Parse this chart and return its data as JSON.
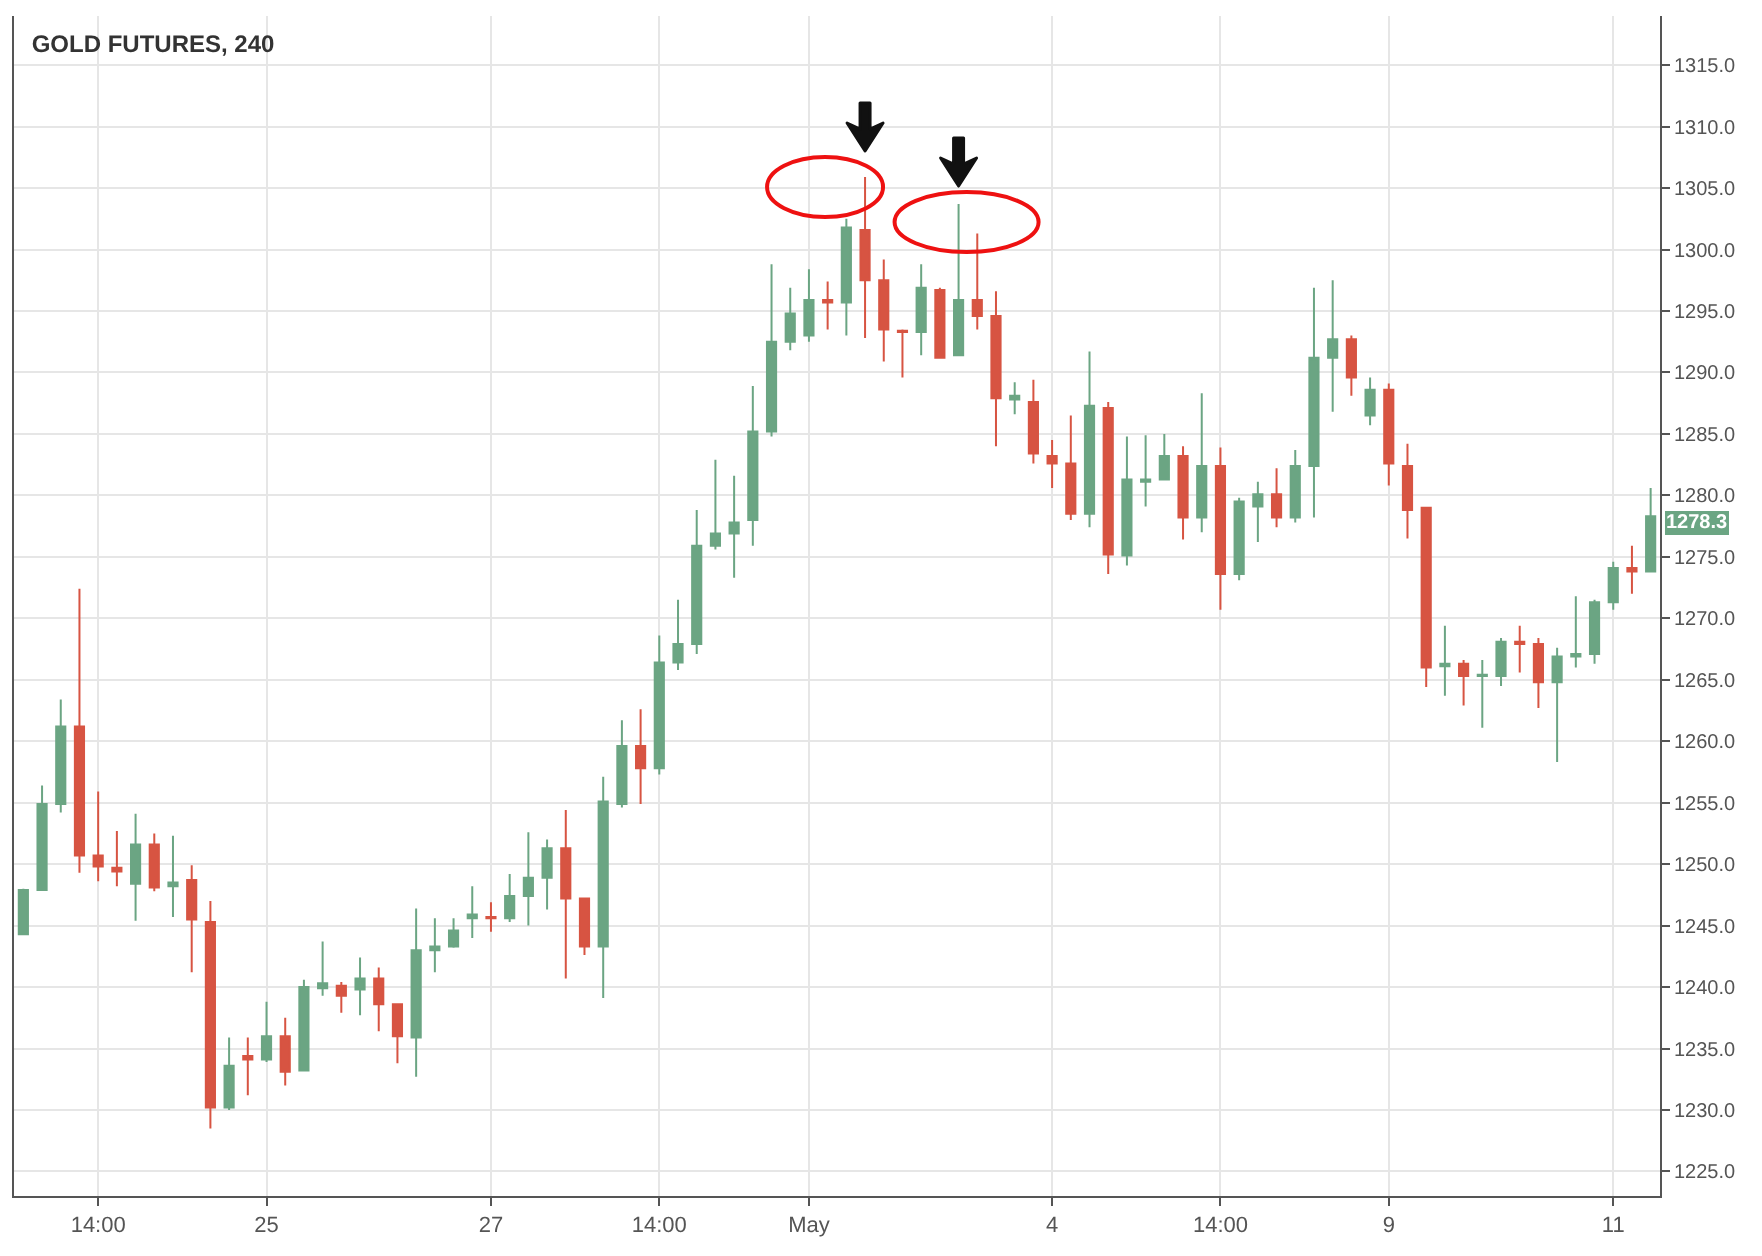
{
  "chart_data": {
    "type": "candlestick",
    "title": "GOLD FUTURES, 240",
    "categories": [
      null,
      null,
      null,
      null,
      "14:00",
      null,
      null,
      null,
      null,
      null,
      null,
      null,
      null,
      "25",
      null,
      null,
      null,
      null,
      null,
      null,
      null,
      null,
      null,
      null,
      null,
      "27",
      null,
      null,
      null,
      null,
      null,
      null,
      null,
      null,
      "14:00",
      null,
      null,
      null,
      null,
      null,
      null,
      null,
      "May",
      null,
      null,
      null,
      null,
      null,
      null,
      null,
      null,
      null,
      null,
      null,
      null,
      "4",
      null,
      null,
      null,
      null,
      null,
      null,
      null,
      null,
      "14:00",
      null,
      null,
      null,
      null,
      null,
      null,
      null,
      null,
      "9",
      null,
      null,
      null,
      null,
      null,
      null,
      null,
      null,
      null,
      null,
      null,
      "11",
      null,
      null
    ],
    "ohlc": [
      [
        1244.3,
        1248.0,
        1244.3,
        1247.9
      ],
      [
        1247.9,
        1256.4,
        1247.9,
        1254.9
      ],
      [
        1254.9,
        1263.4,
        1254.2,
        1261.2
      ],
      [
        1261.2,
        1272.4,
        1249.3,
        1250.7
      ],
      [
        1250.7,
        1255.9,
        1248.6,
        1249.8
      ],
      [
        1249.7,
        1252.7,
        1248.2,
        1249.4
      ],
      [
        1248.4,
        1254.1,
        1245.4,
        1251.6
      ],
      [
        1251.6,
        1252.5,
        1247.8,
        1248.1
      ],
      [
        1248.2,
        1252.3,
        1245.7,
        1248.5
      ],
      [
        1248.7,
        1249.9,
        1241.2,
        1245.5
      ],
      [
        1245.3,
        1247.0,
        1228.5,
        1230.2
      ],
      [
        1230.2,
        1235.9,
        1230.0,
        1233.6
      ],
      [
        1234.4,
        1235.9,
        1231.2,
        1234.1
      ],
      [
        1234.1,
        1238.8,
        1233.9,
        1236.0
      ],
      [
        1236.0,
        1237.5,
        1232.0,
        1233.1
      ],
      [
        1233.2,
        1240.6,
        1233.2,
        1240.0
      ],
      [
        1239.9,
        1243.7,
        1239.3,
        1240.3
      ],
      [
        1240.1,
        1240.4,
        1237.9,
        1239.3
      ],
      [
        1239.8,
        1242.4,
        1237.7,
        1240.7
      ],
      [
        1240.7,
        1241.6,
        1236.4,
        1238.6
      ],
      [
        1238.6,
        1238.6,
        1233.8,
        1236.0
      ],
      [
        1235.9,
        1246.4,
        1232.7,
        1243.0
      ],
      [
        1243.0,
        1245.6,
        1241.2,
        1243.3
      ],
      [
        1243.3,
        1245.6,
        1243.2,
        1244.6
      ],
      [
        1245.6,
        1248.2,
        1244.0,
        1245.9
      ],
      [
        1245.7,
        1246.9,
        1244.5,
        1245.6
      ],
      [
        1245.6,
        1249.2,
        1245.3,
        1247.4
      ],
      [
        1247.4,
        1252.6,
        1245.0,
        1248.9
      ],
      [
        1248.9,
        1252.0,
        1246.3,
        1251.3
      ],
      [
        1251.3,
        1254.4,
        1240.7,
        1247.2
      ],
      [
        1247.2,
        1247.2,
        1242.6,
        1243.3
      ],
      [
        1243.3,
        1257.1,
        1239.1,
        1255.1
      ],
      [
        1254.9,
        1261.7,
        1254.6,
        1259.6
      ],
      [
        1259.6,
        1262.6,
        1254.9,
        1257.8
      ],
      [
        1257.8,
        1268.6,
        1257.3,
        1266.4
      ],
      [
        1266.4,
        1271.5,
        1265.8,
        1267.9
      ],
      [
        1267.9,
        1278.8,
        1267.1,
        1275.9
      ],
      [
        1275.9,
        1282.9,
        1275.6,
        1276.9
      ],
      [
        1276.9,
        1281.6,
        1273.3,
        1277.8
      ],
      [
        1278.0,
        1288.9,
        1275.9,
        1285.2
      ],
      [
        1285.2,
        1298.8,
        1284.8,
        1292.5
      ],
      [
        1292.5,
        1296.9,
        1291.8,
        1294.8
      ],
      [
        1293.0,
        1298.4,
        1292.5,
        1295.9
      ],
      [
        1295.9,
        1297.4,
        1293.5,
        1295.7
      ],
      [
        1295.7,
        1302.5,
        1293.0,
        1301.8
      ],
      [
        1301.6,
        1305.9,
        1292.8,
        1297.5
      ],
      [
        1297.5,
        1299.2,
        1290.9,
        1293.5
      ],
      [
        1293.4,
        1293.5,
        1289.6,
        1293.3
      ],
      [
        1293.3,
        1298.8,
        1291.4,
        1296.9
      ],
      [
        1296.7,
        1296.9,
        1291.2,
        1291.2
      ],
      [
        1291.4,
        1303.7,
        1291.4,
        1295.9
      ],
      [
        1295.9,
        1301.3,
        1293.5,
        1294.6
      ],
      [
        1294.6,
        1296.6,
        1284.0,
        1287.9
      ],
      [
        1287.8,
        1289.2,
        1286.6,
        1288.1
      ],
      [
        1287.6,
        1289.4,
        1282.6,
        1283.4
      ],
      [
        1283.2,
        1284.5,
        1280.6,
        1282.6
      ],
      [
        1282.6,
        1286.5,
        1278.0,
        1278.5
      ],
      [
        1278.5,
        1291.7,
        1277.4,
        1287.3
      ],
      [
        1287.1,
        1287.6,
        1273.6,
        1275.2
      ],
      [
        1275.1,
        1284.8,
        1274.3,
        1281.3
      ],
      [
        1281.1,
        1284.9,
        1279.1,
        1281.3
      ],
      [
        1281.3,
        1285.0,
        1281.2,
        1283.2
      ],
      [
        1283.2,
        1284.0,
        1276.4,
        1278.2
      ],
      [
        1278.2,
        1288.3,
        1277.0,
        1282.4
      ],
      [
        1282.4,
        1283.9,
        1270.7,
        1273.6
      ],
      [
        1273.6,
        1279.8,
        1273.1,
        1279.5
      ],
      [
        1279.1,
        1281.1,
        1276.2,
        1280.1
      ],
      [
        1280.1,
        1282.2,
        1277.4,
        1278.2
      ],
      [
        1278.2,
        1283.7,
        1277.8,
        1282.4
      ],
      [
        1282.4,
        1296.9,
        1278.2,
        1291.2
      ],
      [
        1291.2,
        1297.5,
        1286.8,
        1292.7
      ],
      [
        1292.7,
        1293.0,
        1288.1,
        1289.6
      ],
      [
        1286.5,
        1289.6,
        1285.7,
        1288.6
      ],
      [
        1288.6,
        1289.1,
        1280.8,
        1282.6
      ],
      [
        1282.4,
        1284.2,
        1276.5,
        1278.8
      ],
      [
        1279.0,
        1279.0,
        1264.4,
        1266.0
      ],
      [
        1266.1,
        1269.4,
        1263.7,
        1266.3
      ],
      [
        1266.3,
        1266.6,
        1262.9,
        1265.3
      ],
      [
        1265.3,
        1266.6,
        1261.1,
        1265.4
      ],
      [
        1265.3,
        1268.4,
        1264.5,
        1268.1
      ],
      [
        1268.1,
        1269.4,
        1265.6,
        1267.9
      ],
      [
        1267.9,
        1268.4,
        1262.7,
        1264.8
      ],
      [
        1264.8,
        1267.6,
        1258.3,
        1266.9
      ],
      [
        1266.9,
        1271.8,
        1266.0,
        1267.1
      ],
      [
        1267.1,
        1271.5,
        1266.3,
        1271.3
      ],
      [
        1271.3,
        1274.6,
        1270.7,
        1274.1
      ],
      [
        1274.1,
        1275.9,
        1272.0,
        1273.8
      ],
      [
        1273.8,
        1280.6,
        1273.8,
        1278.3
      ]
    ],
    "colors": [
      "#6ba583",
      "#6ba583",
      "#6ba583",
      "#d75442",
      "#d75442",
      "#d75442",
      "#6ba583",
      "#d75442",
      "#6ba583",
      "#d75442",
      "#d75442",
      "#6ba583",
      "#d75442",
      "#6ba583",
      "#d75442",
      "#6ba583",
      "#6ba583",
      "#d75442",
      "#6ba583",
      "#d75442",
      "#d75442",
      "#6ba583",
      "#6ba583",
      "#6ba583",
      "#6ba583",
      "#d75442",
      "#6ba583",
      "#6ba583",
      "#6ba583",
      "#d75442",
      "#d75442",
      "#6ba583",
      "#6ba583",
      "#d75442",
      "#6ba583",
      "#6ba583",
      "#6ba583",
      "#6ba583",
      "#6ba583",
      "#6ba583",
      "#6ba583",
      "#6ba583",
      "#6ba583",
      "#d75442",
      "#6ba583",
      "#d75442",
      "#d75442",
      "#d75442",
      "#6ba583",
      "#d75442",
      "#6ba583",
      "#d75442",
      "#d75442",
      "#6ba583",
      "#d75442",
      "#d75442",
      "#d75442",
      "#6ba583",
      "#d75442",
      "#6ba583",
      "#6ba583",
      "#6ba583",
      "#d75442",
      "#6ba583",
      "#d75442",
      "#6ba583",
      "#6ba583",
      "#d75442",
      "#6ba583",
      "#6ba583",
      "#6ba583",
      "#d75442",
      "#6ba583",
      "#d75442",
      "#d75442",
      "#d75442",
      "#6ba583",
      "#d75442",
      "#6ba583",
      "#6ba583",
      "#d75442",
      "#d75442",
      "#6ba583",
      "#6ba583",
      "#6ba583",
      "#6ba583",
      "#d75442",
      "#6ba583"
    ],
    "ylim": [
      1223,
      1319
    ],
    "yticks": [
      {
        "value": 1225,
        "label": "1225.0"
      },
      {
        "value": 1230,
        "label": "1230.0"
      },
      {
        "value": 1235,
        "label": "1235.0"
      },
      {
        "value": 1240,
        "label": "1240.0"
      },
      {
        "value": 1245,
        "label": "1245.0"
      },
      {
        "value": 1250,
        "label": "1250.0"
      },
      {
        "value": 1255,
        "label": "1255.0"
      },
      {
        "value": 1260,
        "label": "1260.0"
      },
      {
        "value": 1265,
        "label": "1265.0"
      },
      {
        "value": 1270,
        "label": "1270.0"
      },
      {
        "value": 1275,
        "label": "1275.0"
      },
      {
        "value": 1280,
        "label": "1280.0"
      },
      {
        "value": 1285,
        "label": "1285.0"
      },
      {
        "value": 1290,
        "label": "1290.0"
      },
      {
        "value": 1295,
        "label": "1295.0"
      },
      {
        "value": 1300,
        "label": "1300.0"
      },
      {
        "value": 1305,
        "label": "1305.0"
      },
      {
        "value": 1310,
        "label": "1310.0"
      },
      {
        "value": 1315,
        "label": "1315.0"
      }
    ],
    "grid": true,
    "annotations": [
      "1278.3"
    ]
  }
}
